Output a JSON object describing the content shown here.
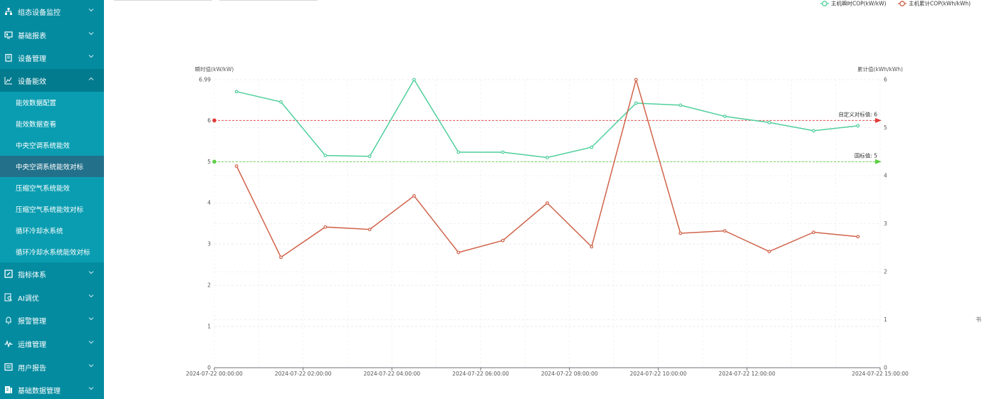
{
  "sidebar": {
    "items": [
      {
        "label": "组态设备监控",
        "icon": "sitemap-icon",
        "name": "sidebar-item-configuration-monitor"
      },
      {
        "label": "基础报表",
        "icon": "monitor-icon",
        "name": "sidebar-item-basic-reports"
      },
      {
        "label": "设备管理",
        "icon": "clipboard-icon",
        "name": "sidebar-item-device-management"
      },
      {
        "label": "设备能效",
        "icon": "area-chart-icon",
        "name": "sidebar-item-device-efficiency",
        "open": true
      },
      {
        "label": "指标体系",
        "icon": "edit-icon",
        "name": "sidebar-item-index-system"
      },
      {
        "label": "AI调优",
        "icon": "search-doc-icon",
        "name": "sidebar-item-ai-tuning"
      },
      {
        "label": "报警管理",
        "icon": "alarm-icon",
        "name": "sidebar-item-alarm-management"
      },
      {
        "label": "运维管理",
        "icon": "pulse-icon",
        "name": "sidebar-item-ops-management"
      },
      {
        "label": "用户报告",
        "icon": "report-icon",
        "name": "sidebar-item-user-report"
      },
      {
        "label": "基础数据管理",
        "icon": "database-icon",
        "name": "sidebar-item-basic-data-management"
      }
    ],
    "submenu": [
      {
        "label": "能效数据配置"
      },
      {
        "label": "能效数据查看"
      },
      {
        "label": "中央空调系统能效"
      },
      {
        "label": "中央空调系统能效对标",
        "active": true
      },
      {
        "label": "压缩空气系统能效"
      },
      {
        "label": "压缩空气系统能效对标"
      },
      {
        "label": "循环冷却水系统"
      },
      {
        "label": "循环冷却水系统能效对标"
      }
    ]
  },
  "right_tool_label": "书",
  "chart_data": {
    "type": "line",
    "legend": [
      {
        "name": "主机瞬时COP(kW/kW)",
        "color": "#4fcf9c"
      },
      {
        "name": "主机累计COP(kWh/kWh)",
        "color": "#d0634a"
      }
    ],
    "legend_position": "top-right",
    "y_left": {
      "name": "瞬时值(kW/kW)",
      "min": 0,
      "max": 6.99,
      "ticks": [
        "0",
        "1",
        "2",
        "3",
        "4",
        "5",
        "6",
        "6.99"
      ]
    },
    "y_right": {
      "name": "累计值(kWh/kWh)",
      "min": 0,
      "max": 6,
      "ticks": [
        "0",
        "1",
        "2",
        "3",
        "4",
        "5",
        "6"
      ]
    },
    "x_axis": {
      "type": "time",
      "start": "2024-07-22 00:00:00",
      "end": "2024-07-22 15:00:00",
      "tick_labels": [
        "2024-07-22 00:00:00",
        "2024-07-22 02:00:00",
        "2024-07-22 04:00:00",
        "2024-07-22 06:00:00",
        "2024-07-22 08:00:00",
        "2024-07-22 10:00:00",
        "2024-07-22 12:00:00",
        "2024-07-22 15:00:00"
      ]
    },
    "x": [
      "2024-07-22 00:30",
      "2024-07-22 01:30",
      "2024-07-22 02:30",
      "2024-07-22 03:30",
      "2024-07-22 04:30",
      "2024-07-22 05:30",
      "2024-07-22 06:30",
      "2024-07-22 07:30",
      "2024-07-22 08:30",
      "2024-07-22 09:30",
      "2024-07-22 10:30",
      "2024-07-22 11:30",
      "2024-07-22 12:30",
      "2024-07-22 13:30",
      "2024-07-22 14:30"
    ],
    "series": [
      {
        "name": "主机瞬时COP(kW/kW)",
        "axis": "left",
        "color": "#4fcf9c",
        "values": [
          6.7,
          6.45,
          5.15,
          5.13,
          6.99,
          5.23,
          5.23,
          5.1,
          5.35,
          6.42,
          6.37,
          6.1,
          5.95,
          5.75,
          5.87
        ]
      },
      {
        "name": "主机累计COP(kWh/kWh)",
        "axis": "right",
        "color": "#d0634a",
        "values": [
          4.2,
          2.3,
          2.93,
          2.88,
          3.58,
          2.4,
          2.65,
          3.43,
          2.52,
          6.0,
          2.8,
          2.85,
          2.42,
          2.82,
          2.73
        ]
      }
    ],
    "mark_lines": [
      {
        "label": "自定义对标值: 6",
        "value": 6,
        "axis": "left",
        "color": "#e03a3a"
      },
      {
        "label": "国标值: 5",
        "value": 5,
        "axis": "left",
        "color": "#5bd044"
      }
    ],
    "grid": true
  }
}
